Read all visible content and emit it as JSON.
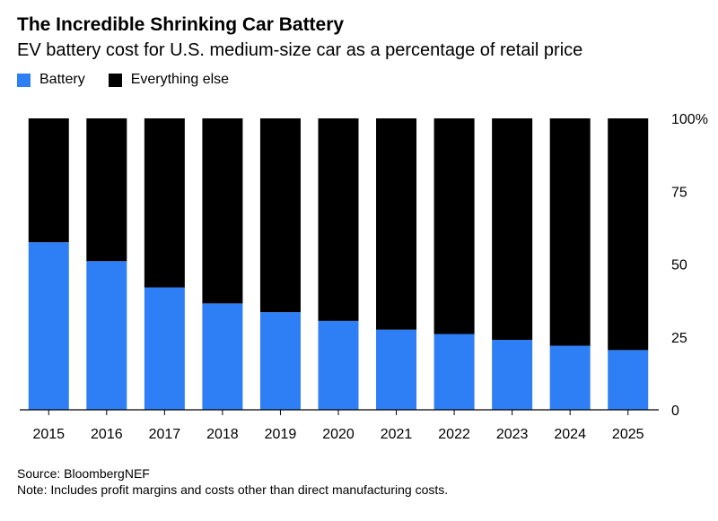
{
  "chart_data": {
    "type": "bar",
    "stacked": true,
    "title": "The Incredible Shrinking Car Battery",
    "subtitle": "EV battery cost for U.S. medium-size car as a percentage of retail price",
    "categories": [
      "2015",
      "2016",
      "2017",
      "2018",
      "2019",
      "2020",
      "2021",
      "2022",
      "2023",
      "2024",
      "2025"
    ],
    "series": [
      {
        "name": "Battery",
        "color": "#2e7ff5",
        "values": [
          57.5,
          51,
          42,
          36.5,
          33.5,
          30.5,
          27.5,
          26,
          24,
          22,
          20.5
        ]
      },
      {
        "name": "Everything else",
        "color": "#000000",
        "values": [
          42.5,
          49,
          58,
          63.5,
          66.5,
          69.5,
          72.5,
          74,
          76,
          78,
          79.5
        ]
      }
    ],
    "ylim": [
      0,
      100
    ],
    "yticks": [
      0,
      25,
      50,
      75,
      100
    ],
    "ytick_labels": [
      "0",
      "25",
      "50",
      "75",
      "100%"
    ],
    "y_axis_side": "right",
    "legend_position": "top-left",
    "grid": false
  },
  "footer": {
    "source": "Source: BloombergNEF",
    "note": "Note: Includes profit margins and costs other than direct manufacturing costs."
  }
}
